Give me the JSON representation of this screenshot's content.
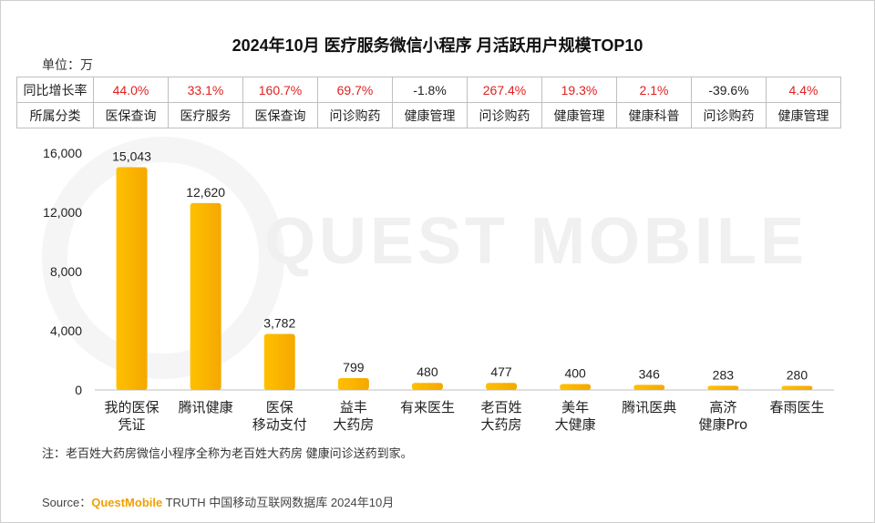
{
  "title": "2024年10月 医疗服务微信小程序 月活跃用户规模TOP10",
  "unit": "单位：万",
  "table": {
    "row1_label": "同比增长率",
    "row2_label": "所属分类",
    "growth": [
      "44.0%",
      "33.1%",
      "160.7%",
      "69.7%",
      "-1.8%",
      "267.4%",
      "19.3%",
      "2.1%",
      "-39.6%",
      "4.4%"
    ],
    "categories": [
      "医保查询",
      "医疗服务",
      "医保查询",
      "问诊购药",
      "健康管理",
      "问诊购药",
      "健康管理",
      "健康科普",
      "问诊购药",
      "健康管理"
    ]
  },
  "chart_data": {
    "type": "bar",
    "title": "2024年10月 医疗服务微信小程序 月活跃用户规模TOP10",
    "categories": [
      [
        "我的医保",
        "凭证"
      ],
      [
        "腾讯健康"
      ],
      [
        "医保",
        "移动支付"
      ],
      [
        "益丰",
        "大药房"
      ],
      [
        "有来医生"
      ],
      [
        "老百姓",
        "大药房"
      ],
      [
        "美年",
        "大健康"
      ],
      [
        "腾讯医典"
      ],
      [
        "高济",
        "健康Pro"
      ],
      [
        "春雨医生"
      ]
    ],
    "values": [
      15043,
      12620,
      3782,
      799,
      480,
      477,
      400,
      346,
      283,
      280
    ],
    "value_labels": [
      "15,043",
      "12,620",
      "3,782",
      "799",
      "480",
      "477",
      "400",
      "346",
      "283",
      "280"
    ],
    "ylim": [
      0,
      16000
    ],
    "yticks": [
      0,
      4000,
      8000,
      12000,
      16000
    ],
    "ytick_labels": [
      "0",
      "4,000",
      "8,000",
      "12,000",
      "16,000"
    ],
    "unit": "万",
    "bar_color": "#ffc000",
    "bar_color_dark": "#f5a800"
  },
  "watermark": "QUEST MOBILE",
  "note": "注：老百姓大药房微信小程序全称为老百姓大药房 健康问诊送药到家。",
  "source": {
    "label": "Source：",
    "brand": "QuestMobile",
    "text": " TRUTH 中国移动互联网数据库 2024年10月"
  }
}
